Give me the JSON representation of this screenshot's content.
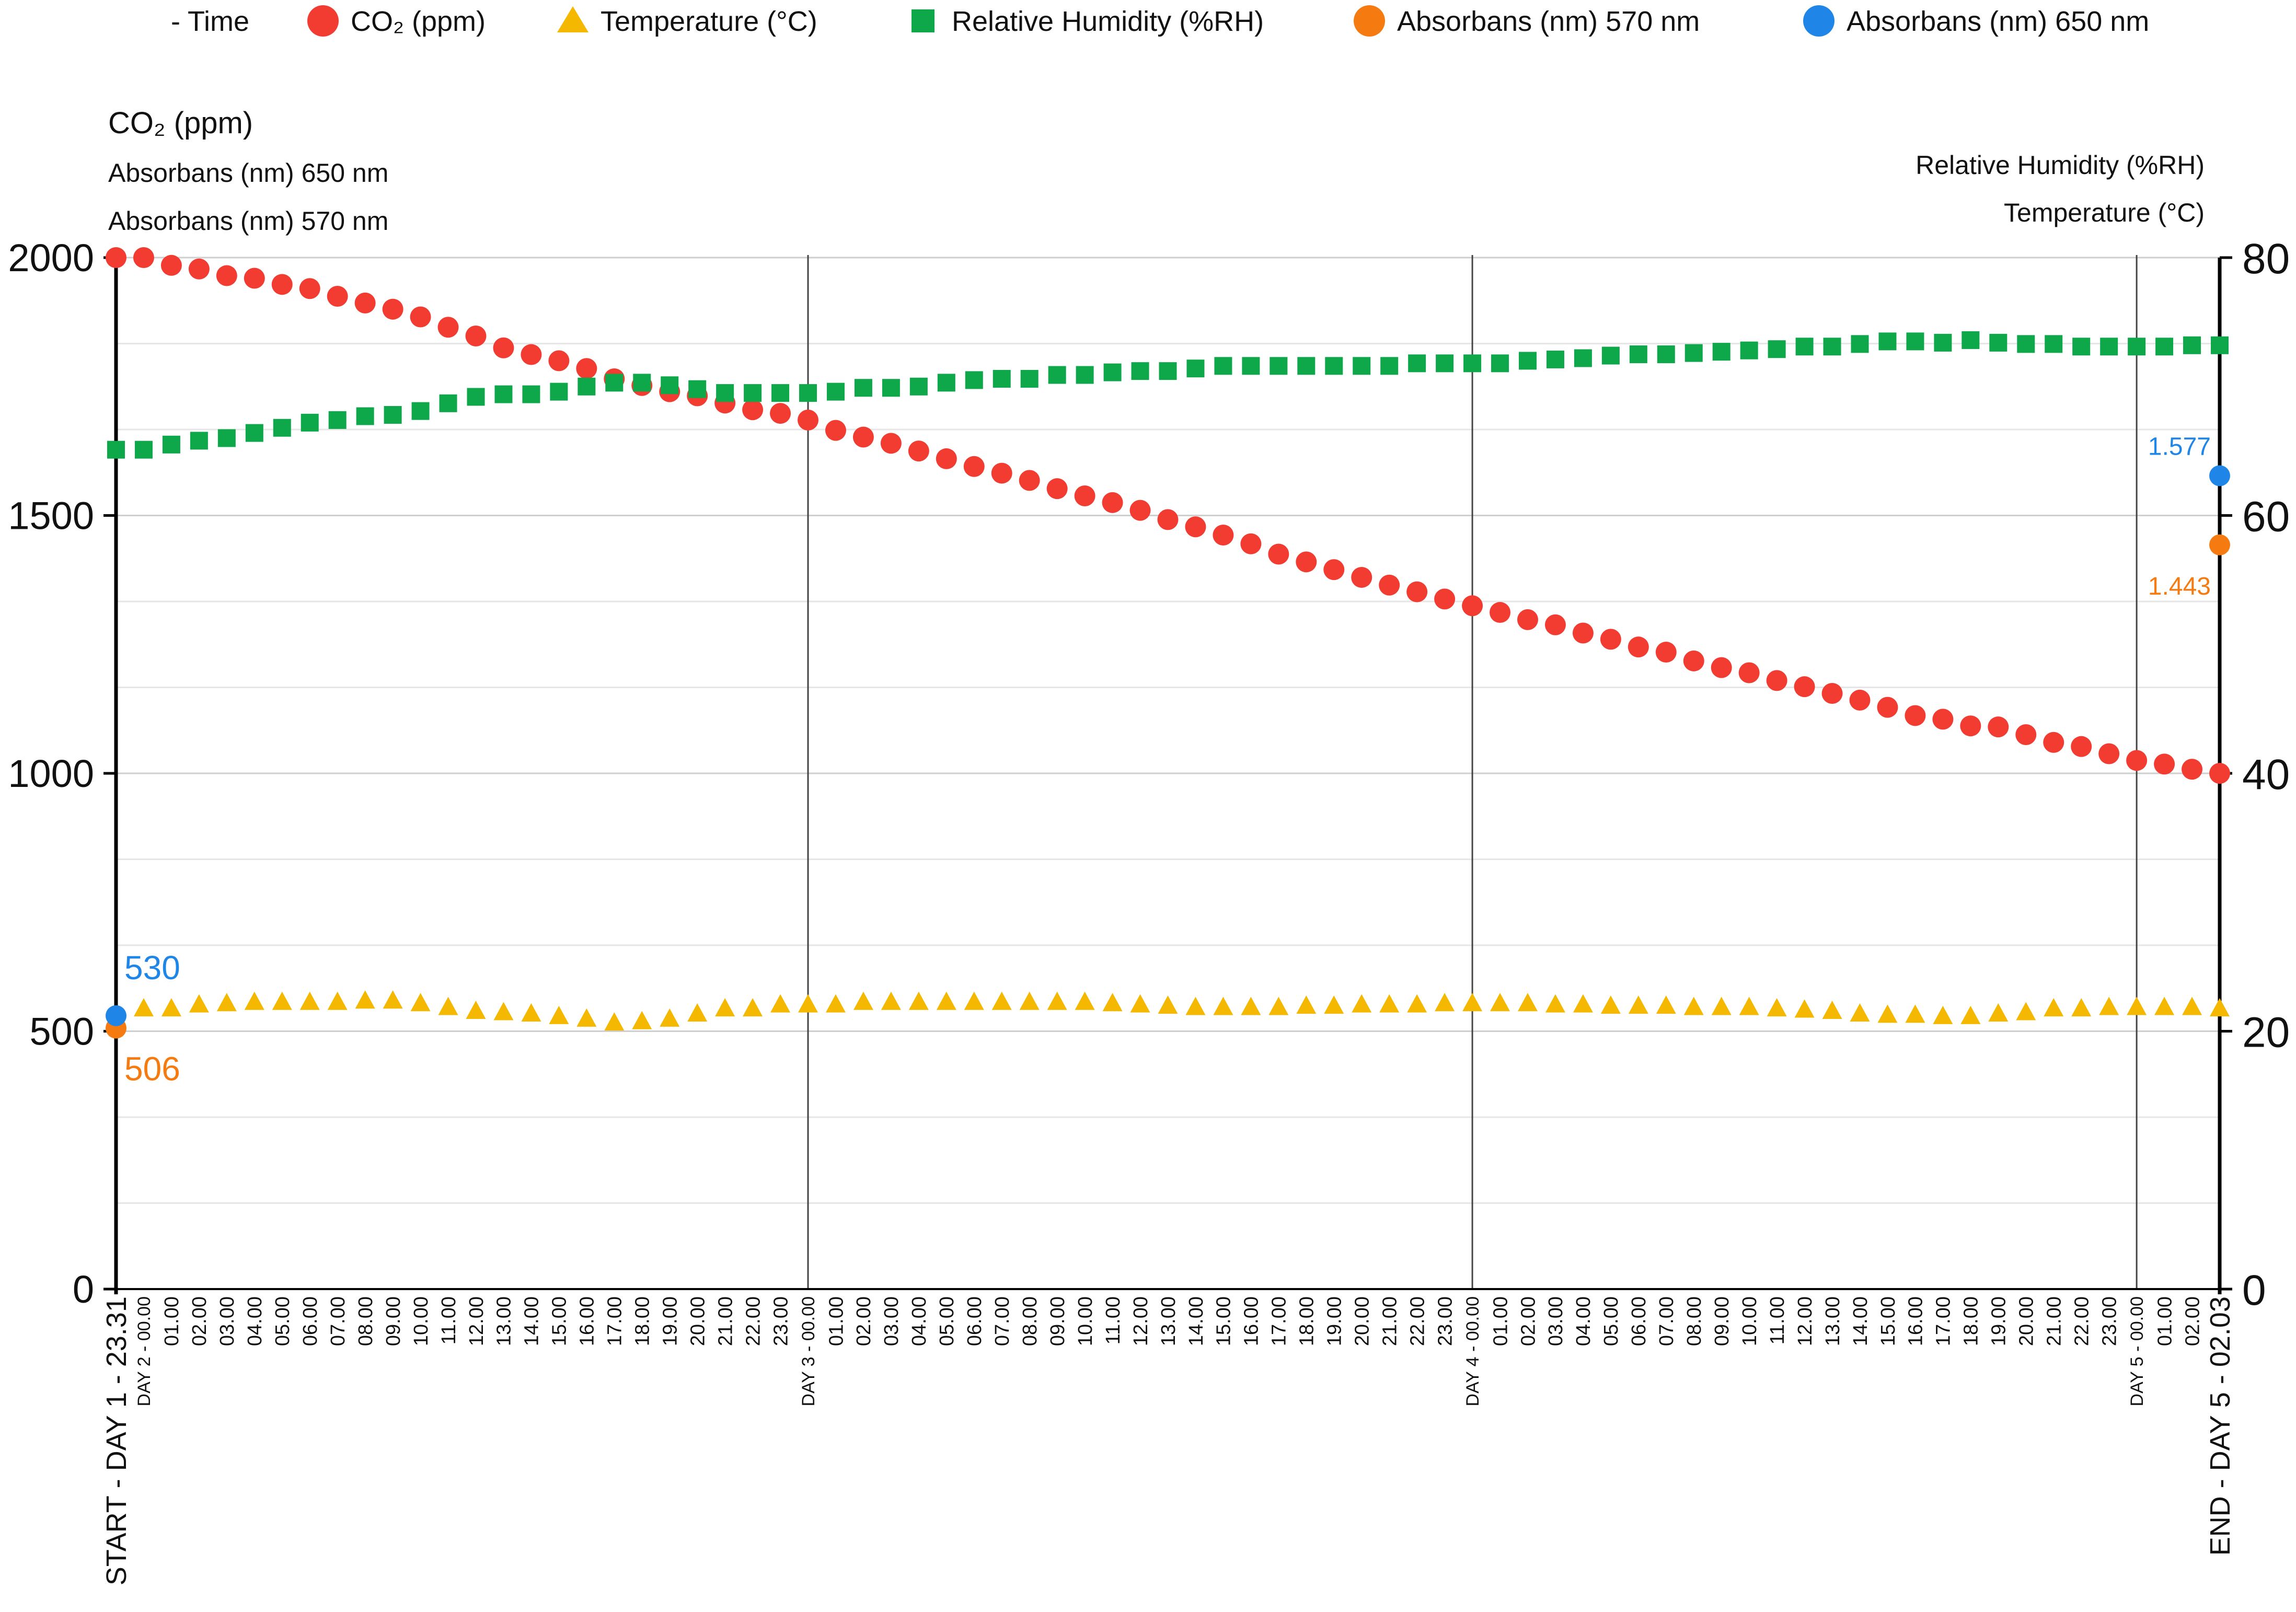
{
  "chart_data": {
    "type": "scatter",
    "legend": {
      "placement": "top",
      "entries": [
        {
          "label": "- Time",
          "marker": "none",
          "color": ""
        },
        {
          "label": "CO₂ (ppm)",
          "marker": "circle",
          "color": "#f23c32"
        },
        {
          "label": "Temperature (°C)",
          "marker": "triangle",
          "color": "#f5b800"
        },
        {
          "label": "Relative Humidity (%RH)",
          "marker": "square",
          "color": "#0ea84a"
        },
        {
          "label": "Absorbans (nm) 570 nm",
          "marker": "circle",
          "color": "#f57a10"
        },
        {
          "label": "Absorbans (nm) 650 nm",
          "marker": "circle",
          "color": "#1f86e8"
        }
      ]
    },
    "left_axis": {
      "titles": [
        "CO₂ (ppm)",
        "Absorbans (nm) 650 nm",
        "Absorbans (nm) 570 nm"
      ],
      "range": [
        0,
        2000
      ],
      "ticks": [
        "0",
        "500",
        "1000",
        "1500",
        "2000"
      ]
    },
    "right_axis": {
      "titles": [
        "Relative Humidity (%RH)",
        "Temperature (°C)"
      ],
      "range": [
        0,
        80
      ],
      "ticks": [
        "0",
        "20",
        "40",
        "60",
        "80"
      ]
    },
    "x_labels": [
      "START - DAY 1 - 23.31",
      "DAY 2 - 00.00",
      "01.00",
      "02.00",
      "03.00",
      "04.00",
      "05.00",
      "06.00",
      "07.00",
      "08.00",
      "09.00",
      "10.00",
      "11.00",
      "12.00",
      "13.00",
      "14.00",
      "15.00",
      "16.00",
      "17.00",
      "18.00",
      "19.00",
      "20.00",
      "21.00",
      "22.00",
      "23.00",
      "DAY 3 - 00.00",
      "01.00",
      "02.00",
      "03.00",
      "04.00",
      "05.00",
      "06.00",
      "07.00",
      "08.00",
      "09.00",
      "10.00",
      "11.00",
      "12.00",
      "13.00",
      "14.00",
      "15.00",
      "16.00",
      "17.00",
      "18.00",
      "19.00",
      "20.00",
      "21.00",
      "22.00",
      "23.00",
      "DAY 4 - 00.00",
      "01.00",
      "02.00",
      "03.00",
      "04.00",
      "05.00",
      "06.00",
      "07.00",
      "08.00",
      "09.00",
      "10.00",
      "11.00",
      "12.00",
      "13.00",
      "14.00",
      "15.00",
      "16.00",
      "17.00",
      "18.00",
      "19.00",
      "20.00",
      "21.00",
      "22.00",
      "23.00",
      "DAY 5 - 00.00",
      "01.00",
      "02.00",
      "END - DAY 5 - 02.03"
    ],
    "day_markers": [
      "DAY 2 - 00.00",
      "DAY 3 - 00.00",
      "DAY 4 - 00.00",
      "DAY 5 - 00.00"
    ],
    "series": [
      {
        "name": "CO₂ (ppm)",
        "axis": "left",
        "color": "#f23c32",
        "marker": "circle",
        "values": [
          2000,
          2000,
          1985,
          1978,
          1965,
          1960,
          1948,
          1940,
          1925,
          1912,
          1900,
          1885,
          1865,
          1848,
          1825,
          1812,
          1800,
          1785,
          1765,
          1752,
          1740,
          1732,
          1718,
          1705,
          1698,
          1685,
          1665,
          1652,
          1640,
          1625,
          1610,
          1595,
          1582,
          1568,
          1552,
          1538,
          1525,
          1510,
          1492,
          1478,
          1462,
          1445,
          1425,
          1410,
          1395,
          1380,
          1365,
          1352,
          1338,
          1325,
          1312,
          1298,
          1288,
          1272,
          1260,
          1245,
          1235,
          1218,
          1205,
          1195,
          1180,
          1168,
          1155,
          1142,
          1128,
          1112,
          1105,
          1092,
          1090,
          1075,
          1060,
          1052,
          1038,
          1025,
          1018,
          1008,
          1000
        ]
      },
      {
        "name": "Temperature (°C)",
        "axis": "right",
        "color": "#f5b800",
        "marker": "triangle",
        "values": [
          null,
          21.8,
          21.8,
          22.1,
          22.2,
          22.3,
          22.3,
          22.3,
          22.3,
          22.4,
          22.4,
          22.2,
          21.9,
          21.6,
          21.5,
          21.4,
          21.2,
          21.0,
          20.7,
          20.8,
          21.0,
          21.4,
          21.8,
          21.8,
          22.1,
          22.1,
          22.1,
          22.3,
          22.3,
          22.3,
          22.3,
          22.3,
          22.3,
          22.3,
          22.3,
          22.3,
          22.2,
          22.1,
          22.0,
          21.9,
          21.9,
          21.9,
          21.9,
          22.0,
          22.0,
          22.1,
          22.1,
          22.1,
          22.2,
          22.2,
          22.2,
          22.2,
          22.1,
          22.1,
          22.0,
          22.0,
          22.0,
          21.9,
          21.9,
          21.9,
          21.8,
          21.7,
          21.6,
          21.4,
          21.3,
          21.3,
          21.2,
          21.2,
          21.4,
          21.5,
          21.8,
          21.8,
          21.9,
          21.9,
          21.9,
          21.9,
          21.8
        ]
      },
      {
        "name": "Relative Humidity (%RH)",
        "axis": "right",
        "color": "#0ea84a",
        "marker": "square",
        "values": [
          65.1,
          65.1,
          65.5,
          65.8,
          66.0,
          66.4,
          66.8,
          67.2,
          67.4,
          67.7,
          67.8,
          68.1,
          68.7,
          69.2,
          69.4,
          69.4,
          69.6,
          70.0,
          70.3,
          70.3,
          70.1,
          69.8,
          69.5,
          69.5,
          69.5,
          69.5,
          69.6,
          69.9,
          69.9,
          70.0,
          70.3,
          70.5,
          70.6,
          70.6,
          70.9,
          70.9,
          71.1,
          71.2,
          71.2,
          71.4,
          71.6,
          71.6,
          71.6,
          71.6,
          71.6,
          71.6,
          71.6,
          71.8,
          71.8,
          71.8,
          71.8,
          72.0,
          72.1,
          72.2,
          72.4,
          72.5,
          72.5,
          72.6,
          72.7,
          72.8,
          72.9,
          73.1,
          73.1,
          73.3,
          73.5,
          73.5,
          73.4,
          73.6,
          73.4,
          73.3,
          73.3,
          73.1,
          73.1,
          73.1,
          73.1,
          73.2,
          73.2
        ]
      },
      {
        "name": "Absorbans (nm) 570 nm",
        "axis": "left",
        "color": "#f57a10",
        "marker": "circle",
        "points": [
          {
            "index": 0,
            "value": 506,
            "label": "506"
          },
          {
            "index": 76,
            "value": 1443,
            "label": "1.443"
          }
        ]
      },
      {
        "name": "Absorbans (nm) 650 nm",
        "axis": "left",
        "color": "#1f86e8",
        "marker": "circle",
        "points": [
          {
            "index": 0,
            "value": 530,
            "label": "530"
          },
          {
            "index": 76,
            "value": 1577,
            "label": "1.577"
          }
        ]
      }
    ]
  }
}
